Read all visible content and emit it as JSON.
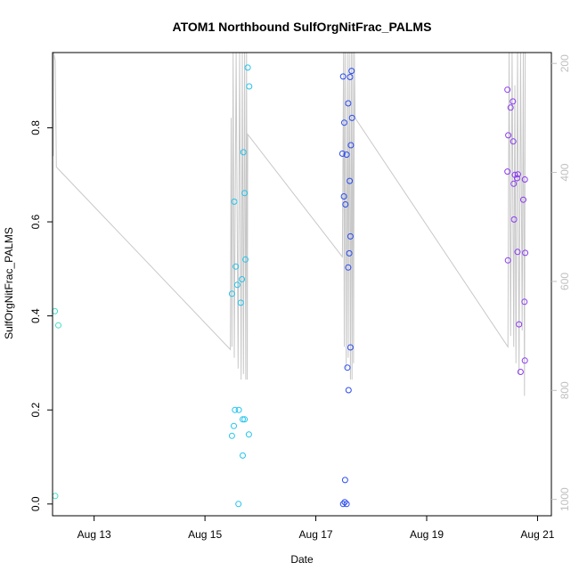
{
  "chart_data": {
    "type": "scatter",
    "title": "ATOM1 Northbound SulfOrgNitFrac_PALMS",
    "xlabel": "Date",
    "ylabel": "SulfOrgNitFrac_PALMS",
    "x_range": [
      "2016-08-12T06:00",
      "2016-08-21T06:00"
    ],
    "ylim": [
      -0.025,
      0.96
    ],
    "x_ticks": [
      {
        "label": "Aug 13",
        "date": "2016-08-13T00:00"
      },
      {
        "label": "Aug 15",
        "date": "2016-08-15T00:00"
      },
      {
        "label": "Aug 17",
        "date": "2016-08-17T00:00"
      },
      {
        "label": "Aug 19",
        "date": "2016-08-19T00:00"
      },
      {
        "label": "Aug 21",
        "date": "2016-08-21T00:00"
      }
    ],
    "y_ticks": [
      "0.0",
      "0.2",
      "0.4",
      "0.6",
      "0.8"
    ],
    "y_tick_values": [
      0,
      0.2,
      0.4,
      0.6,
      0.8
    ],
    "y2_range": [
      1030,
      180
    ],
    "y2_ticks": [
      "200",
      "400",
      "600",
      "800",
      "1000"
    ],
    "y2_tick_values": [
      200,
      400,
      600,
      800,
      1000
    ],
    "grid": false,
    "legend": "none",
    "colors": {
      "pressure_trace": "#c8c8c8",
      "axis": "#000000",
      "right_axis": "#c0c0c0",
      "flight1": "#40e0c8",
      "flight2": "#22c4ec",
      "flight3": "#2a4cf0",
      "flight4": "#8a3af0"
    },
    "pressure_trace": [
      [
        "2016-08-12T06:10",
        180
      ],
      [
        "2016-08-12T06:20",
        370
      ],
      [
        "2016-08-12T06:30",
        180
      ],
      [
        "2016-08-12T07:10",
        195
      ],
      [
        "2016-08-12T07:40",
        390
      ],
      [
        "2016-08-15T11:00",
        725
      ],
      [
        "2016-08-15T11:20",
        300
      ],
      [
        "2016-08-15T11:40",
        720
      ],
      [
        "2016-08-15T12:10",
        180
      ],
      [
        "2016-08-15T12:40",
        740
      ],
      [
        "2016-08-15T13:30",
        180
      ],
      [
        "2016-08-15T14:20",
        760
      ],
      [
        "2016-08-15T15:00",
        180
      ],
      [
        "2016-08-15T15:40",
        780
      ],
      [
        "2016-08-15T16:10",
        180
      ],
      [
        "2016-08-15T16:40",
        770
      ],
      [
        "2016-08-15T17:10",
        180
      ],
      [
        "2016-08-15T17:40",
        780
      ],
      [
        "2016-08-15T18:00",
        180
      ],
      [
        "2016-08-15T18:20",
        780
      ],
      [
        "2016-08-15T18:30",
        330
      ],
      [
        "2016-08-17T11:30",
        555
      ],
      [
        "2016-08-17T12:00",
        180
      ],
      [
        "2016-08-17T12:20",
        720
      ],
      [
        "2016-08-17T12:40",
        180
      ],
      [
        "2016-08-17T13:10",
        760
      ],
      [
        "2016-08-17T13:40",
        180
      ],
      [
        "2016-08-17T14:00",
        740
      ],
      [
        "2016-08-17T14:30",
        180
      ],
      [
        "2016-08-17T15:00",
        780
      ],
      [
        "2016-08-17T15:20",
        180
      ],
      [
        "2016-08-17T15:40",
        780
      ],
      [
        "2016-08-17T16:00",
        180
      ],
      [
        "2016-08-17T16:20",
        750
      ],
      [
        "2016-08-17T16:40",
        180
      ],
      [
        "2016-08-17T17:00",
        300
      ],
      [
        "2016-08-20T11:10",
        720
      ],
      [
        "2016-08-20T11:40",
        180
      ],
      [
        "2016-08-20T12:20",
        700
      ],
      [
        "2016-08-20T13:00",
        180
      ],
      [
        "2016-08-20T13:40",
        720
      ],
      [
        "2016-08-20T14:10",
        240
      ],
      [
        "2016-08-20T14:40",
        750
      ],
      [
        "2016-08-20T15:20",
        180
      ],
      [
        "2016-08-20T16:00",
        770
      ],
      [
        "2016-08-20T16:40",
        180
      ],
      [
        "2016-08-20T17:20",
        690
      ],
      [
        "2016-08-20T17:50",
        180
      ],
      [
        "2016-08-20T18:20",
        810
      ],
      [
        "2016-08-20T18:40",
        180
      ]
    ],
    "series": [
      {
        "color": "#40e0c8",
        "points": [
          [
            "2016-08-12T07:00",
            0.41
          ],
          [
            "2016-08-12T08:30",
            0.38
          ],
          [
            "2016-08-12T07:10",
            0.017
          ]
        ]
      },
      {
        "color": "#22c4ec",
        "points": [
          [
            "2016-08-15T18:30",
            0.928
          ],
          [
            "2016-08-15T19:10",
            0.888
          ],
          [
            "2016-08-15T16:40",
            0.748
          ],
          [
            "2016-08-15T17:10",
            0.661
          ],
          [
            "2016-08-15T12:40",
            0.643
          ],
          [
            "2016-08-15T17:30",
            0.52
          ],
          [
            "2016-08-15T13:20",
            0.505
          ],
          [
            "2016-08-15T16:00",
            0.478
          ],
          [
            "2016-08-15T14:00",
            0.466
          ],
          [
            "2016-08-15T11:40",
            0.447
          ],
          [
            "2016-08-15T15:30",
            0.428
          ],
          [
            "2016-08-15T13:00",
            0.2
          ],
          [
            "2016-08-15T14:40",
            0.2
          ],
          [
            "2016-08-15T16:20",
            0.18
          ],
          [
            "2016-08-15T17:10",
            0.18
          ],
          [
            "2016-08-15T12:30",
            0.166
          ],
          [
            "2016-08-15T11:40",
            0.145
          ],
          [
            "2016-08-15T19:00",
            0.148
          ],
          [
            "2016-08-15T16:20",
            0.103
          ],
          [
            "2016-08-15T14:30",
            0.0
          ]
        ]
      },
      {
        "color": "#2a4cf0",
        "points": [
          [
            "2016-08-17T15:30",
            0.921
          ],
          [
            "2016-08-17T11:50",
            0.909
          ],
          [
            "2016-08-17T14:50",
            0.908
          ],
          [
            "2016-08-17T14:00",
            0.852
          ],
          [
            "2016-08-17T15:40",
            0.821
          ],
          [
            "2016-08-17T12:20",
            0.811
          ],
          [
            "2016-08-17T15:10",
            0.763
          ],
          [
            "2016-08-17T11:30",
            0.745
          ],
          [
            "2016-08-17T13:20",
            0.743
          ],
          [
            "2016-08-17T14:40",
            0.687
          ],
          [
            "2016-08-17T12:10",
            0.654
          ],
          [
            "2016-08-17T12:50",
            0.637
          ],
          [
            "2016-08-17T15:00",
            0.569
          ],
          [
            "2016-08-17T14:30",
            0.533
          ],
          [
            "2016-08-17T14:00",
            0.503
          ],
          [
            "2016-08-17T15:00",
            0.333
          ],
          [
            "2016-08-17T13:40",
            0.29
          ],
          [
            "2016-08-17T14:10",
            0.242
          ],
          [
            "2016-08-17T12:40",
            0.051
          ],
          [
            "2016-08-17T12:30",
            0.004
          ],
          [
            "2016-08-17T11:50",
            0.0
          ],
          [
            "2016-08-17T13:20",
            0.0
          ]
        ]
      },
      {
        "color": "#8a3af0",
        "points": [
          [
            "2016-08-20T11:00",
            0.881
          ],
          [
            "2016-08-20T13:20",
            0.856
          ],
          [
            "2016-08-20T12:20",
            0.843
          ],
          [
            "2016-08-20T11:20",
            0.784
          ],
          [
            "2016-08-20T13:30",
            0.771
          ],
          [
            "2016-08-20T11:00",
            0.707
          ],
          [
            "2016-08-20T14:10",
            0.7
          ],
          [
            "2016-08-20T15:30",
            0.701
          ],
          [
            "2016-08-20T15:10",
            0.693
          ],
          [
            "2016-08-20T18:30",
            0.69
          ],
          [
            "2016-08-20T13:40",
            0.681
          ],
          [
            "2016-08-20T17:50",
            0.647
          ],
          [
            "2016-08-20T13:50",
            0.605
          ],
          [
            "2016-08-20T15:20",
            0.536
          ],
          [
            "2016-08-20T18:40",
            0.534
          ],
          [
            "2016-08-20T11:10",
            0.518
          ],
          [
            "2016-08-20T18:20",
            0.43
          ],
          [
            "2016-08-20T16:00",
            0.382
          ],
          [
            "2016-08-20T18:30",
            0.305
          ],
          [
            "2016-08-20T16:40",
            0.281
          ]
        ]
      }
    ]
  }
}
